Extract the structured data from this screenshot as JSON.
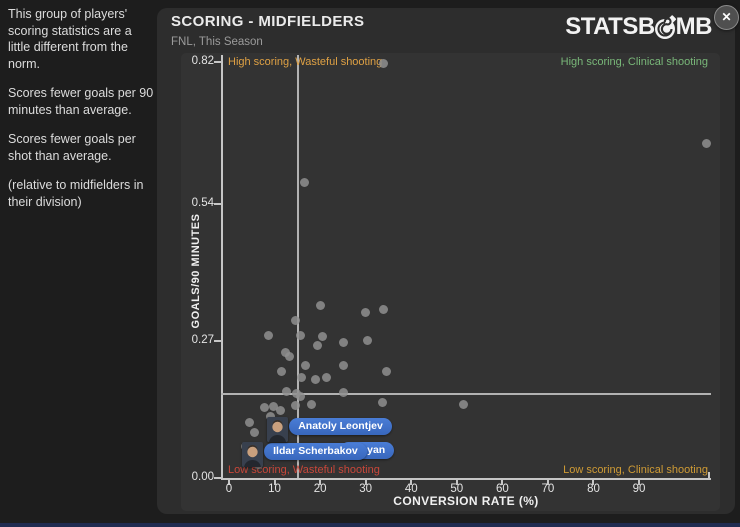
{
  "sidebar": {
    "paragraphs": [
      "This group of players' scoring statistics are a little different from the norm.",
      "Scores fewer goals per 90 minutes than average.",
      "Scores fewer goals per shot than average.",
      "(relative to midfielders in their division)"
    ]
  },
  "header": {
    "title": "SCORING - MIDFIELDERS",
    "subtitle": "FNL, This Season",
    "logo_part1": "STATSB",
    "logo_part2": "MB",
    "close_label": "✕"
  },
  "chart_data": {
    "type": "scatter",
    "title": "SCORING - MIDFIELDERS",
    "xlabel": "CONVERSION RATE (%)",
    "ylabel": "GOALS/90 MINUTES",
    "xlim": [
      0,
      107
    ],
    "ylim": [
      0,
      0.84
    ],
    "grid": false,
    "x_ticks": [
      {
        "v": 0,
        "label": "0"
      },
      {
        "v": 10,
        "label": "10"
      },
      {
        "v": 20,
        "label": "20"
      },
      {
        "v": 30,
        "label": "30"
      },
      {
        "v": 40,
        "label": "40"
      },
      {
        "v": 50,
        "label": "50"
      },
      {
        "v": 60,
        "label": "60"
      },
      {
        "v": 70,
        "label": "70"
      },
      {
        "v": 80,
        "label": "80"
      },
      {
        "v": 90,
        "label": "90"
      }
    ],
    "y_ticks": [
      {
        "v": 0,
        "label": "0.00"
      },
      {
        "v": 0.27,
        "label": "0.27"
      },
      {
        "v": 0.54,
        "label": "0.54"
      },
      {
        "v": 0.82,
        "label": "0.82"
      }
    ],
    "average_lines": {
      "x": 15.2,
      "y": 0.166
    },
    "quadrant_labels": {
      "top_left": {
        "text": "High scoring, Wasteful shooting",
        "color": "#dfa144"
      },
      "top_right": {
        "text": "High scoring, Clinical shooting",
        "color": "#79b779"
      },
      "bottom_left": {
        "text": "Low scoring, Wasteful shooting",
        "color": "#c9473a"
      },
      "bottom_right": {
        "text": "Low scoring, Clinical shooting",
        "color": "#cf9b35"
      }
    },
    "points": [
      [
        34.0,
        0.818
      ],
      [
        104.7,
        0.66
      ],
      [
        16.5,
        0.583
      ],
      [
        20.0,
        0.341
      ],
      [
        29.9,
        0.327
      ],
      [
        34.0,
        0.333
      ],
      [
        14.7,
        0.31
      ],
      [
        8.6,
        0.28
      ],
      [
        15.6,
        0.28
      ],
      [
        20.6,
        0.278
      ],
      [
        19.5,
        0.262
      ],
      [
        25.2,
        0.268
      ],
      [
        30.3,
        0.272
      ],
      [
        12.5,
        0.248
      ],
      [
        13.2,
        0.239
      ],
      [
        16.7,
        0.221
      ],
      [
        25.2,
        0.221
      ],
      [
        11.6,
        0.209
      ],
      [
        16.0,
        0.199
      ],
      [
        18.9,
        0.195
      ],
      [
        21.3,
        0.199
      ],
      [
        34.5,
        0.209
      ],
      [
        12.7,
        0.17
      ],
      [
        14.9,
        0.166
      ],
      [
        15.6,
        0.16
      ],
      [
        25.2,
        0.168
      ],
      [
        7.9,
        0.138
      ],
      [
        9.7,
        0.14
      ],
      [
        11.2,
        0.134
      ],
      [
        14.5,
        0.142
      ],
      [
        18.2,
        0.144
      ],
      [
        33.8,
        0.148
      ],
      [
        51.4,
        0.144
      ],
      [
        9.2,
        0.122
      ],
      [
        4.6,
        0.11
      ],
      [
        5.7,
        0.089
      ],
      [
        3.7,
        0.063
      ],
      [
        6.4,
        0.026
      ]
    ],
    "highlighted_players": [
      {
        "name": "Anatoly Leontjev",
        "x": 10.8,
        "y": 0.097,
        "covered": false
      },
      {
        "name": "Ildar Scherbakov",
        "x": 5.3,
        "y": 0.048,
        "covered": false
      },
      {
        "name": "nyan",
        "x": 22.0,
        "y": 0.05,
        "covered": true
      }
    ],
    "point_color": "#8f8f8f",
    "pill_color": "#3e6fc8"
  }
}
